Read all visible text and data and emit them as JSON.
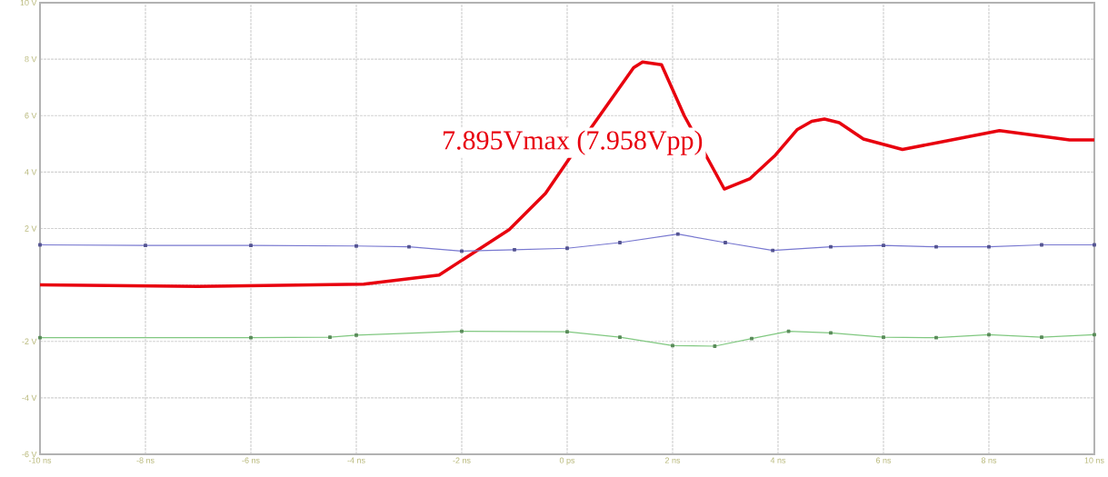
{
  "chart_data": {
    "type": "line",
    "x": [
      -10,
      -7,
      -3.86,
      -2.43,
      -1.1,
      -0.41,
      0.05,
      1.26,
      1.43,
      1.79,
      2.22,
      2.98,
      3.47,
      3.95,
      4.36,
      4.64,
      4.88,
      5.16,
      5.62,
      6.36,
      7.05,
      8.2,
      9.53,
      10
    ],
    "series": [
      {
        "color": "#e8000e",
        "values": [
          0.0,
          -0.05,
          0.03,
          0.35,
          1.96,
          3.25,
          4.5,
          7.7,
          7.9,
          7.8,
          6.0,
          3.4,
          3.77,
          4.6,
          5.5,
          5.8,
          5.88,
          5.75,
          5.17,
          4.8,
          5.05,
          5.47,
          5.14,
          5.14
        ],
        "marker": "none"
      },
      {
        "color": "#7878d0",
        "x": [
          -10,
          -8,
          -6,
          -4,
          -3,
          -2,
          -1,
          0,
          1,
          2.1,
          3,
          3.9,
          5,
          6,
          7,
          8,
          9,
          10
        ],
        "values": [
          1.42,
          1.4,
          1.4,
          1.38,
          1.35,
          1.2,
          1.25,
          1.3,
          1.5,
          1.8,
          1.5,
          1.22,
          1.35,
          1.4,
          1.35,
          1.35,
          1.42,
          1.42
        ],
        "marker": "square"
      },
      {
        "color": "#80c880",
        "x": [
          -10,
          -6,
          -4.5,
          -4,
          -2,
          0,
          1,
          2,
          2.8,
          3.5,
          4.2,
          5,
          6,
          7,
          8,
          9,
          10
        ],
        "values": [
          -1.87,
          -1.87,
          -1.85,
          -1.78,
          -1.64,
          -1.66,
          -1.85,
          -2.15,
          -2.17,
          -1.9,
          -1.64,
          -1.7,
          -1.85,
          -1.87,
          -1.76,
          -1.85,
          -1.76
        ],
        "marker": "square"
      }
    ],
    "xlim": [
      -10,
      10
    ],
    "xticks": [
      {
        "value": -10,
        "label": "-10 ns"
      },
      {
        "value": -8,
        "label": "-8 ns"
      },
      {
        "value": -6,
        "label": "-6 ns"
      },
      {
        "value": -4,
        "label": "-4 ns"
      },
      {
        "value": -2,
        "label": "-2 ns"
      },
      {
        "value": 0,
        "label": "0 ps"
      },
      {
        "value": 2,
        "label": "2 ns"
      },
      {
        "value": 4,
        "label": "4 ns"
      },
      {
        "value": 6,
        "label": "6 ns"
      },
      {
        "value": 8,
        "label": "8 ns"
      },
      {
        "value": 10,
        "label": "10 ns"
      }
    ],
    "ylim": [
      -6,
      10
    ],
    "yticks": [
      {
        "value": -6,
        "label": "-6 V"
      },
      {
        "value": -4,
        "label": "-4 V"
      },
      {
        "value": -2,
        "label": "-2 V"
      },
      {
        "value": 0,
        "label": null
      },
      {
        "value": 2,
        "label": "2 V"
      },
      {
        "value": 4,
        "label": "4 V"
      },
      {
        "value": 6,
        "label": "6 V"
      },
      {
        "value": 8,
        "label": "8 V"
      },
      {
        "value": 10,
        "label": "10 V"
      }
    ],
    "grid": true,
    "line_style": "solid",
    "annotations": [
      "7.895Vmax (7.958Vpp)"
    ]
  }
}
